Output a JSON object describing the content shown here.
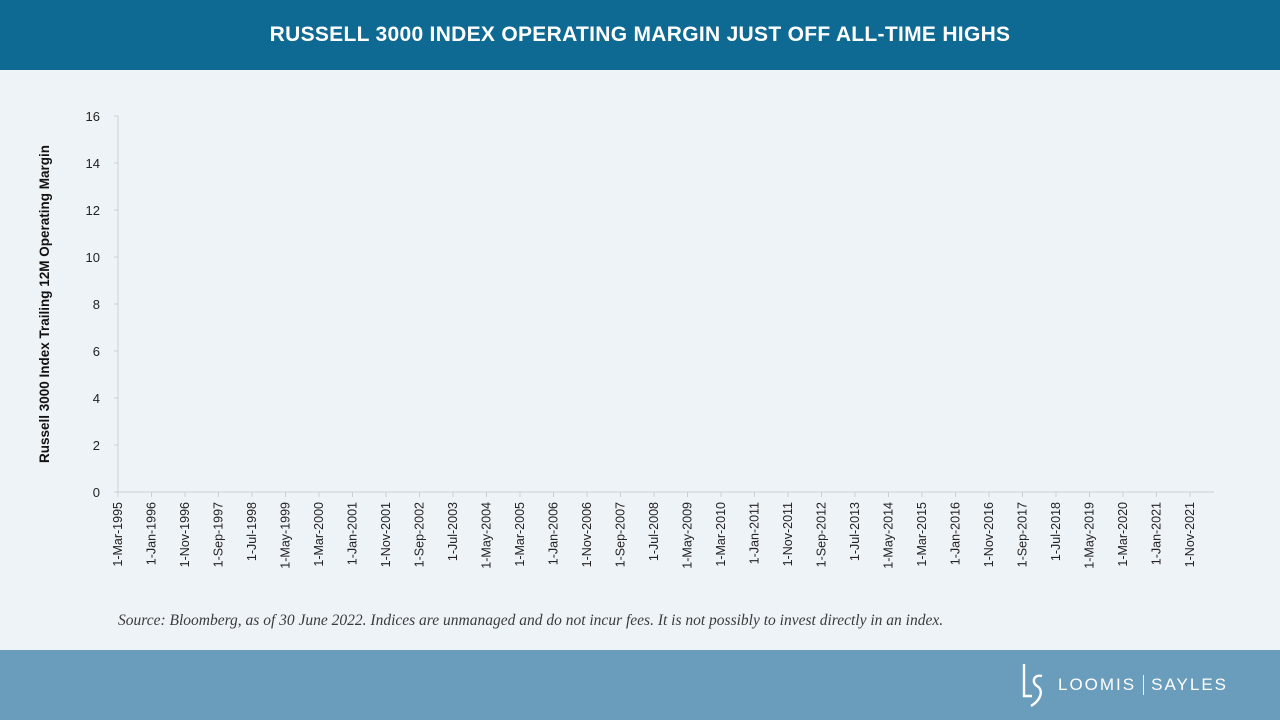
{
  "header": {
    "title": "RUSSELL 3000 INDEX OPERATING MARGIN JUST OFF ALL-TIME HIGHS"
  },
  "chart_data": {
    "type": "line",
    "title": "",
    "xlabel": "",
    "ylabel": "Russell 3000 Index Trailing 12M Operating Margin",
    "ylim": [
      0,
      16
    ],
    "yticks": [
      0,
      2,
      4,
      6,
      8,
      10,
      12,
      14,
      16
    ],
    "categories": [
      "1-Mar-1995",
      "1-Jan-1996",
      "1-Nov-1996",
      "1-Sep-1997",
      "1-Jul-1998",
      "1-May-1999",
      "1-Mar-2000",
      "1-Jan-2001",
      "1-Nov-2001",
      "1-Sep-2002",
      "1-Jul-2003",
      "1-May-2004",
      "1-Mar-2005",
      "1-Jan-2006",
      "1-Nov-2006",
      "1-Sep-2007",
      "1-Jul-2008",
      "1-May-2009",
      "1-Mar-2010",
      "1-Jan-2011",
      "1-Nov-2011",
      "1-Sep-2012",
      "1-Jul-2013",
      "1-May-2014",
      "1-Mar-2015",
      "1-Jan-2016",
      "1-Nov-2016",
      "1-Sep-2017",
      "1-Jul-2018",
      "1-May-2019",
      "1-Mar-2020",
      "1-Jan-2021",
      "1-Nov-2021"
    ],
    "series": [],
    "grid": false,
    "colors": {
      "axis": "#c8d0d8",
      "tick_label": "#222222",
      "line": "#0e6a93"
    }
  },
  "source": "Source: Bloomberg, as of 30 June 2022. Indices are unmanaged and do not incur fees. It is not possibly to invest directly in an index.",
  "footer": {
    "logo": {
      "word1": "LOOMIS",
      "word2": "SAYLES",
      "icon": "loomis-sayles-ls-icon"
    }
  },
  "colors": {
    "header_bg": "#0e6a93",
    "footer_bg": "#6a9cbb",
    "page_bg": "#eef3f8"
  }
}
